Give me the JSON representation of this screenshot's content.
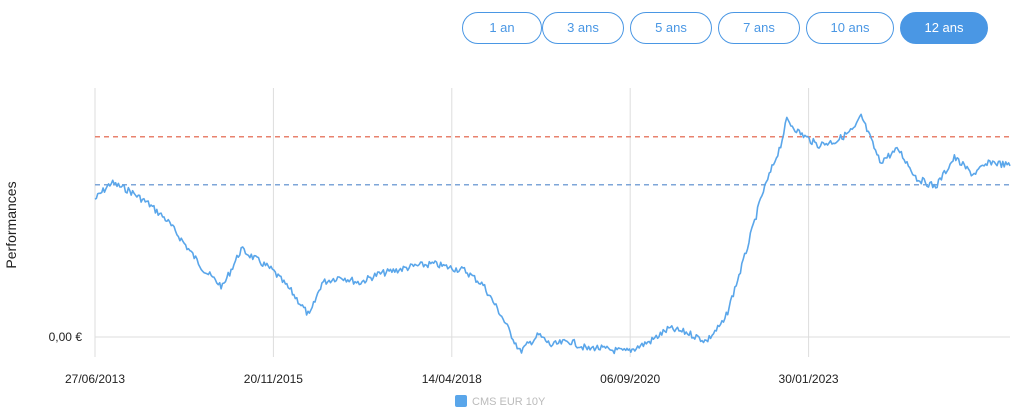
{
  "range_buttons": [
    {
      "label": "1 an",
      "active": false
    },
    {
      "label": "3 ans",
      "active": false
    },
    {
      "label": "5 ans",
      "active": false
    },
    {
      "label": "7 ans",
      "active": false
    },
    {
      "label": "10 ans",
      "active": false
    },
    {
      "label": "12 ans",
      "active": true
    }
  ],
  "colors": {
    "accent": "#4a97e4",
    "series": "#5aa6ea",
    "red_line": "#e8826e",
    "blue_line": "#7ea6d8",
    "grid": "#dddddd",
    "legend_text": "#bbbbbb"
  },
  "chart_data": {
    "type": "line",
    "title": "",
    "xlabel": "",
    "ylabel": "Performances",
    "y_tick_labels": [
      "0,00 €"
    ],
    "x_tick_labels": [
      "27/06/2013",
      "20/11/2015",
      "14/04/2018",
      "06/09/2020",
      "30/01/2023"
    ],
    "x_range": [
      "27/06/2013",
      "2025-10"
    ],
    "y_range": [
      -0.45,
      5.8
    ],
    "grid": "vertical",
    "legend_position": "bottom-center",
    "reference_lines": [
      {
        "color": "red",
        "style": "dashed",
        "y": 4.8
      },
      {
        "color": "blue",
        "style": "dashed",
        "y": 3.65
      }
    ],
    "series": [
      {
        "name": "CMS EUR 10Y",
        "x": [
          "2013-06-27",
          "2013-09",
          "2013-12",
          "2014-03",
          "2014-06",
          "2014-09",
          "2014-12",
          "2015-03",
          "2015-06",
          "2015-09",
          "2015-11",
          "2016-02",
          "2016-05",
          "2016-07",
          "2016-10",
          "2017-01",
          "2017-04",
          "2017-07",
          "2017-10",
          "2018-01",
          "2018-04",
          "2018-06",
          "2018-09",
          "2018-12",
          "2019-03",
          "2019-06",
          "2019-08",
          "2019-11",
          "2020-02",
          "2020-03",
          "2020-05",
          "2020-08",
          "2020-09",
          "2020-12",
          "2021-03",
          "2021-06",
          "2021-09",
          "2021-12",
          "2022-03",
          "2022-06",
          "2022-09",
          "2022-10",
          "2022-12",
          "2023-03",
          "2023-06",
          "2023-09",
          "2023-10",
          "2024-01",
          "2024-04",
          "2024-07",
          "2024-10",
          "2025-01",
          "2025-04",
          "2025-07",
          "2025-10"
        ],
        "y": [
          3.3,
          3.7,
          3.5,
          3.2,
          2.8,
          2.2,
          1.6,
          1.2,
          2.1,
          1.8,
          1.6,
          1.1,
          0.5,
          1.3,
          1.45,
          1.3,
          1.5,
          1.6,
          1.7,
          1.75,
          1.65,
          1.6,
          1.25,
          0.5,
          -0.35,
          0.05,
          -0.2,
          -0.1,
          -0.3,
          -0.25,
          -0.3,
          -0.35,
          -0.3,
          -0.1,
          0.2,
          0.1,
          -0.1,
          0.4,
          1.8,
          3.4,
          4.6,
          5.2,
          4.9,
          4.6,
          4.7,
          5.0,
          5.3,
          4.2,
          4.5,
          3.8,
          3.6,
          4.3,
          3.9,
          4.2,
          4.1
        ]
      }
    ]
  }
}
